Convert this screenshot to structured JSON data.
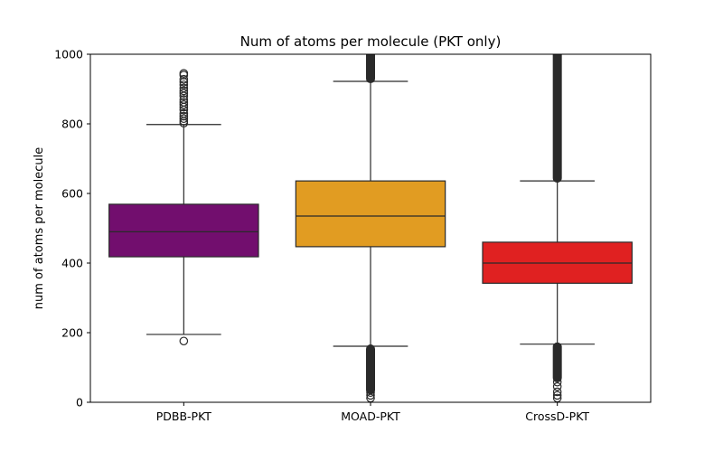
{
  "chart_data": {
    "type": "boxplot",
    "title": "Num of atoms per molecule (PKT only)",
    "xlabel": "",
    "ylabel": "num of atoms per molecule",
    "ylim": [
      0,
      1000
    ],
    "yticks": [
      0,
      200,
      400,
      600,
      800,
      1000
    ],
    "grid": false,
    "categories": [
      "PDBB-PKT",
      "MOAD-PKT",
      "CrossD-PKT"
    ],
    "series": [
      {
        "category": "PDBB-PKT",
        "color": "#720E6E",
        "whisker_low": 195,
        "q1": 418,
        "median": 490,
        "q3": 569,
        "whisker_high": 798,
        "outliers_high": [
          802,
          808,
          815,
          822,
          830,
          840,
          848,
          855,
          862,
          870,
          880,
          888,
          895,
          903,
          912,
          920,
          928,
          940,
          945
        ],
        "outliers_low": [
          176
        ],
        "dense_high_outliers_to": null,
        "dense_low_outliers_from": null
      },
      {
        "category": "MOAD-PKT",
        "color": "#E19C22",
        "whisker_low": 161,
        "q1": 447,
        "median": 535,
        "q3": 636,
        "whisker_high": 922,
        "outliers_high": [],
        "outliers_low": [
          12,
          20,
          28
        ],
        "dense_high_outliers_to": 1000,
        "dense_low_outliers_from": 35
      },
      {
        "category": "CrossD-PKT",
        "color": "#E02121",
        "whisker_low": 167,
        "q1": 342,
        "median": 400,
        "q3": 460,
        "whisker_high": 636,
        "outliers_high": [],
        "outliers_low": [
          12,
          20,
          30,
          45,
          58
        ],
        "dense_high_outliers_to": 1000,
        "dense_low_outliers_from": 70
      }
    ]
  }
}
